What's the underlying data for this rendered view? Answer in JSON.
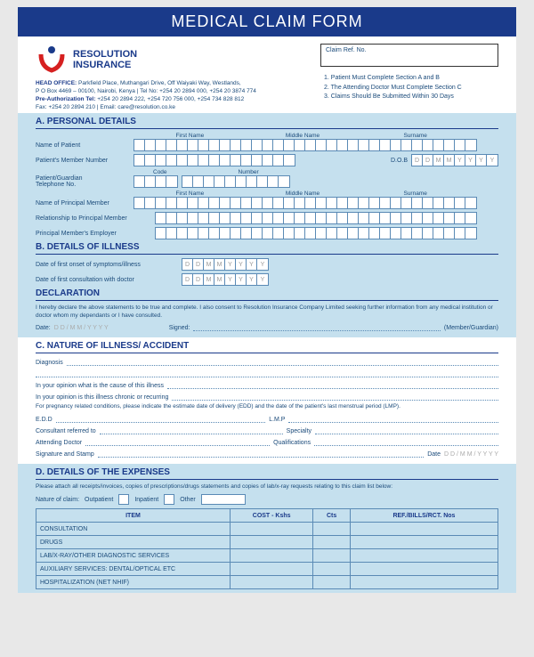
{
  "title": "MEDICAL CLAIM FORM",
  "company": {
    "name1": "RESOLUTION",
    "name2": "INSURANCE"
  },
  "head_office": {
    "label": "HEAD OFFICE:",
    "addr": "Parkfield Place, Muthangari Drive, Off Waiyaki Way, Westlands,",
    "po": "P O Box 4469 – 00100, Nairobi, Kenya | Tel No: +254 20 2894 000, +254 20 3874 774",
    "preauth_label": "Pre-Authorization Tel:",
    "preauth": "+254 20 2894 222, +254 720 756 000, +254 734 828 812",
    "fax": "Fax: +254 20 2894 210 | Email: care@resolution.co.ke"
  },
  "claim_ref": "Claim Ref. No.",
  "notes": [
    "1. Patient Must Complete Section A and B",
    "2. The Attending Doctor Must Complete Section C",
    "3. Claims Should Be Submitted Within 30 Days"
  ],
  "sec_a": {
    "title": "A. PERSONAL DETAILS",
    "hdrs": [
      "First Name",
      "Middle Name",
      "Surname"
    ],
    "patient_name": "Name of Patient",
    "member_no": "Patient's Member Number",
    "dob": "D.O.B",
    "dob_ph": [
      "D",
      "D",
      "M",
      "M",
      "Y",
      "Y",
      "Y",
      "Y"
    ],
    "code": "Code",
    "number": "Number",
    "tel": "Patient/Guardian\nTelephone No.",
    "principal": "Name of Principal Member",
    "relationship": "Relationship to Principal Member",
    "employer": "Principal Member's Employer"
  },
  "sec_b": {
    "title": "B. DETAILS OF ILLNESS",
    "onset": "Date of first onset of symptoms/illness",
    "consult": "Date of first consultation with doctor",
    "ph": [
      "D",
      "D",
      "M",
      "M",
      "Y",
      "Y",
      "Y",
      "Y"
    ]
  },
  "decl": {
    "title": "DECLARATION",
    "text": "I hereby declare the above statements to be true and complete. I also consent to Resolution Insurance Company Limited seeking further information from any medical institution or doctor whom my dependants or I have consulted.",
    "date": "Date:",
    "date_ph": "D D / M M / Y Y Y Y",
    "signed": "Signed:",
    "role": "(Member/Guardian)"
  },
  "sec_c": {
    "title": "C. NATURE OF ILLNESS/ ACCIDENT",
    "diagnosis": "Diagnosis",
    "cause": "In your opinion what is the cause of this illness",
    "chronic": "In your opinion is this illness chronic or recurring",
    "preg": "For pregnancy related conditions, please indicate the estimate date of delivery (EDD) and the date of the patient's last menstrual period (LMP).",
    "edd": "E.D.D",
    "lmp": "L.M.P",
    "consultant": "Consultant referred to",
    "specialty": "Specialty",
    "doctor": "Attending Doctor",
    "quals": "Qualifications",
    "sig": "Signature and Stamp",
    "date": "Date",
    "date_ph": "D D / M M / Y Y Y Y"
  },
  "sec_d": {
    "title": "D. DETAILS OF THE EXPENSES",
    "instr": "Please attach all receipts/invoices, copies of prescriptions/drugs statements and copies of lab/x-ray requests relating to this claim list below:",
    "nature": "Nature of claim:",
    "opts": [
      "Outpatient",
      "Inpatient",
      "Other"
    ],
    "cols": [
      "ITEM",
      "COST - Kshs",
      "Cts",
      "REF./BILLS/RCT. Nos"
    ],
    "rows": [
      "CONSULTATION",
      "DRUGS",
      "LAB/X-RAY/OTHER DIAGNOSTIC SERVICES",
      "AUXILIARY SERVICES: DENTAL/OPTICAL ETC",
      "HOSPITALIZATION (NET NHIF)"
    ]
  }
}
